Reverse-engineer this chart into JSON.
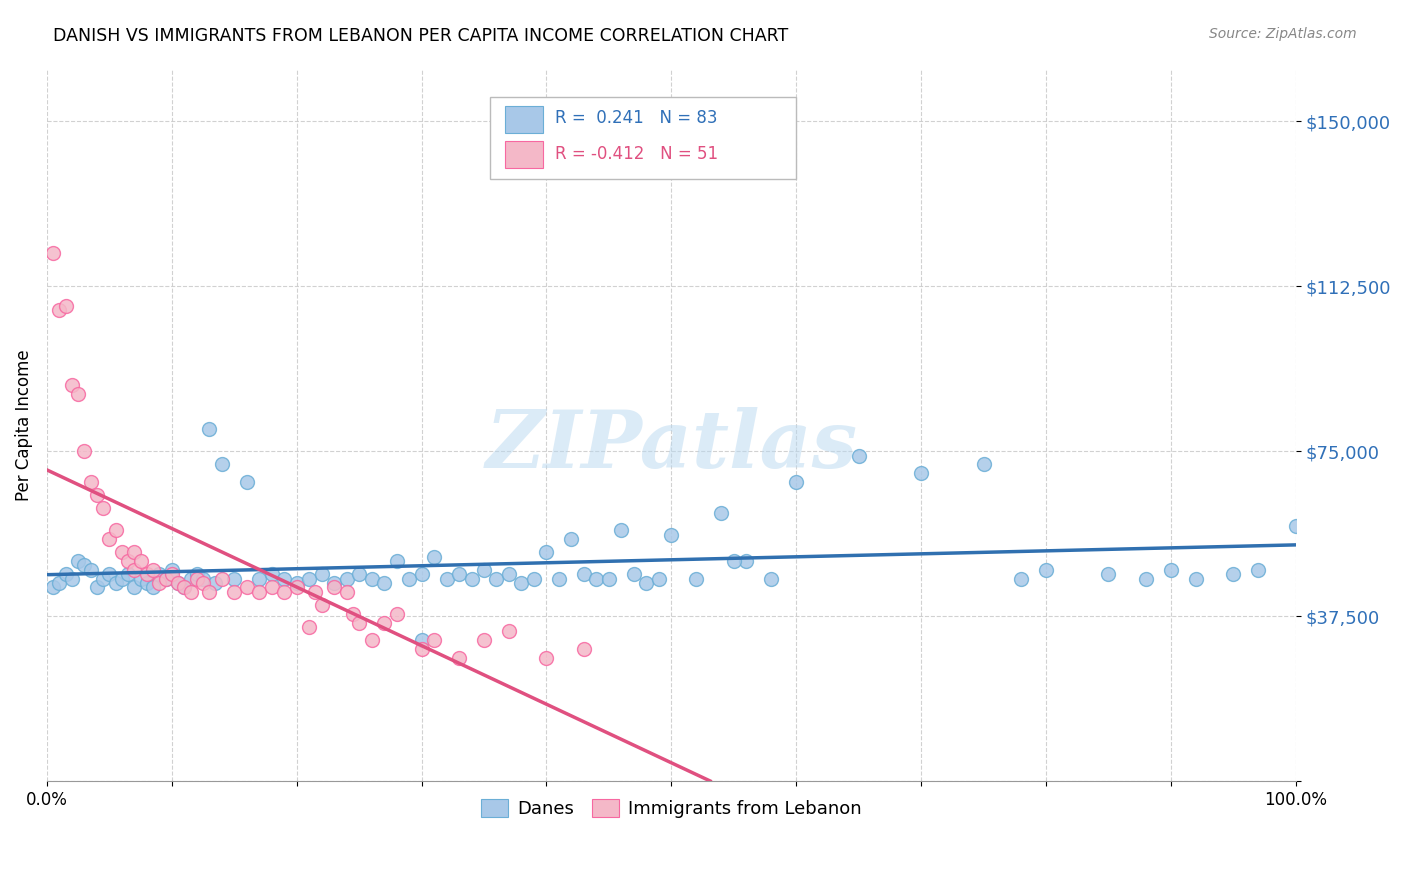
{
  "title": "DANISH VS IMMIGRANTS FROM LEBANON PER CAPITA INCOME CORRELATION CHART",
  "source": "Source: ZipAtlas.com",
  "ylabel": "Per Capita Income",
  "ylim": [
    0,
    162000
  ],
  "xlim": [
    0.0,
    1.0
  ],
  "watermark": "ZIPatlas",
  "danes_color": "#a8c8e8",
  "danes_edge_color": "#6baed6",
  "leb_color": "#f4b8c8",
  "leb_edge_color": "#f768a1",
  "danes_line_color": "#3070b0",
  "leb_line_color": "#e05080",
  "danes_x": [
    0.005,
    0.01,
    0.015,
    0.02,
    0.025,
    0.03,
    0.035,
    0.04,
    0.045,
    0.05,
    0.055,
    0.06,
    0.065,
    0.07,
    0.075,
    0.08,
    0.085,
    0.09,
    0.095,
    0.1,
    0.105,
    0.11,
    0.115,
    0.12,
    0.125,
    0.13,
    0.135,
    0.14,
    0.15,
    0.16,
    0.17,
    0.18,
    0.19,
    0.2,
    0.21,
    0.22,
    0.23,
    0.24,
    0.25,
    0.26,
    0.27,
    0.28,
    0.29,
    0.3,
    0.31,
    0.32,
    0.33,
    0.34,
    0.35,
    0.36,
    0.37,
    0.38,
    0.39,
    0.4,
    0.41,
    0.42,
    0.43,
    0.44,
    0.45,
    0.46,
    0.47,
    0.48,
    0.49,
    0.5,
    0.52,
    0.54,
    0.56,
    0.58,
    0.6,
    0.65,
    0.7,
    0.75,
    0.78,
    0.8,
    0.85,
    0.88,
    0.9,
    0.92,
    0.95,
    0.97,
    1.0,
    0.3,
    0.55
  ],
  "danes_y": [
    44000,
    45000,
    47000,
    46000,
    50000,
    49000,
    48000,
    44000,
    46000,
    47000,
    45000,
    46000,
    47000,
    44000,
    46000,
    45000,
    44000,
    47000,
    46000,
    48000,
    45000,
    44000,
    46000,
    47000,
    46000,
    80000,
    45000,
    72000,
    46000,
    68000,
    46000,
    47000,
    46000,
    45000,
    46000,
    47000,
    45000,
    46000,
    47000,
    46000,
    45000,
    50000,
    46000,
    47000,
    51000,
    46000,
    47000,
    46000,
    48000,
    46000,
    47000,
    45000,
    46000,
    52000,
    46000,
    55000,
    47000,
    46000,
    46000,
    57000,
    47000,
    45000,
    46000,
    56000,
    46000,
    61000,
    50000,
    46000,
    68000,
    74000,
    70000,
    72000,
    46000,
    48000,
    47000,
    46000,
    48000,
    46000,
    47000,
    48000,
    58000,
    32000,
    50000
  ],
  "leb_x": [
    0.005,
    0.01,
    0.015,
    0.02,
    0.025,
    0.03,
    0.035,
    0.04,
    0.045,
    0.05,
    0.055,
    0.06,
    0.065,
    0.07,
    0.07,
    0.075,
    0.08,
    0.085,
    0.09,
    0.095,
    0.1,
    0.105,
    0.11,
    0.115,
    0.12,
    0.125,
    0.13,
    0.14,
    0.15,
    0.16,
    0.17,
    0.18,
    0.19,
    0.2,
    0.21,
    0.215,
    0.22,
    0.23,
    0.24,
    0.245,
    0.25,
    0.26,
    0.27,
    0.28,
    0.3,
    0.31,
    0.33,
    0.35,
    0.37,
    0.4,
    0.43
  ],
  "leb_y": [
    120000,
    107000,
    108000,
    90000,
    88000,
    75000,
    68000,
    65000,
    62000,
    55000,
    57000,
    52000,
    50000,
    52000,
    48000,
    50000,
    47000,
    48000,
    45000,
    46000,
    47000,
    45000,
    44000,
    43000,
    46000,
    45000,
    43000,
    46000,
    43000,
    44000,
    43000,
    44000,
    43000,
    44000,
    35000,
    43000,
    40000,
    44000,
    43000,
    38000,
    36000,
    32000,
    36000,
    38000,
    30000,
    32000,
    28000,
    32000,
    34000,
    28000,
    30000
  ],
  "ytick_vals": [
    0,
    37500,
    75000,
    112500,
    150000
  ],
  "ytick_labels": [
    "",
    "$37,500",
    "$75,000",
    "$112,500",
    "$150,000"
  ],
  "xtick_positions": [
    0.0,
    0.1,
    0.2,
    0.3,
    0.4,
    0.5,
    0.6,
    0.7,
    0.8,
    0.9,
    1.0
  ],
  "xtick_labels": [
    "0.0%",
    "",
    "",
    "",
    "",
    "",
    "",
    "",
    "",
    "",
    "100.0%"
  ]
}
